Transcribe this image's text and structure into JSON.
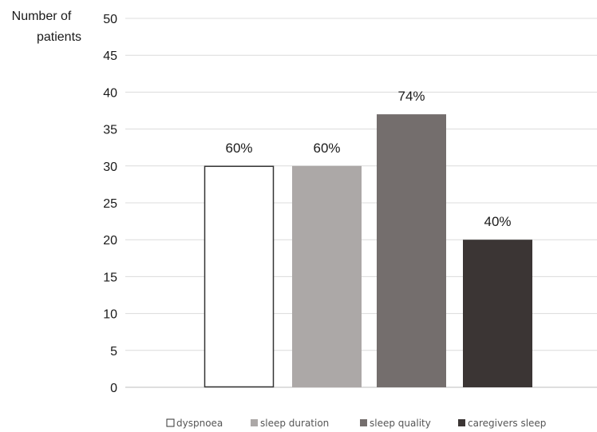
{
  "chart_data": {
    "type": "bar",
    "ylabel": "Number of patients",
    "ylabel_lines": [
      "Number of",
      "patients"
    ],
    "ylim": [
      0,
      50
    ],
    "yticks": [
      0,
      5,
      10,
      15,
      20,
      25,
      30,
      35,
      40,
      45,
      50
    ],
    "grid": true,
    "legend_position": "bottom",
    "series": [
      {
        "name": "dyspnoea",
        "value": 30,
        "label": "60%",
        "color": "#ffffff",
        "stroke": "#333333"
      },
      {
        "name": "sleep duration",
        "value": 30,
        "label": "60%",
        "color": "#aca8a7",
        "stroke": "none"
      },
      {
        "name": "sleep quality",
        "value": 37,
        "label": "74%",
        "color": "#746e6d",
        "stroke": "none"
      },
      {
        "name": "caregivers sleep",
        "value": 20,
        "label": "40%",
        "color": "#3b3534",
        "stroke": "none"
      }
    ]
  }
}
